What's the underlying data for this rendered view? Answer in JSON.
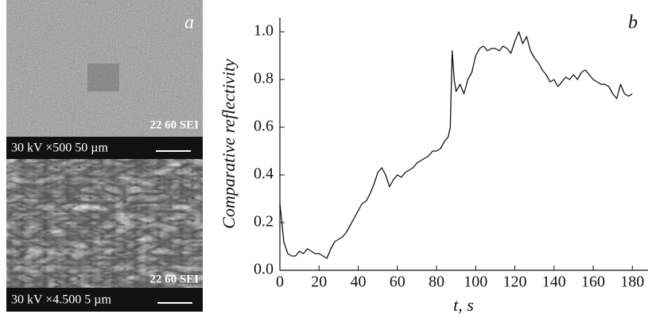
{
  "chart_data": {
    "type": "line",
    "panel": "b",
    "ylabel": "Comparative reflectivity",
    "xlabel": "t, s",
    "x": [
      0,
      1,
      2,
      4,
      6,
      8,
      10,
      12,
      14,
      16,
      18,
      20,
      22,
      24,
      26,
      28,
      30,
      32,
      34,
      36,
      38,
      40,
      42,
      44,
      46,
      48,
      50,
      52,
      54,
      56,
      58,
      60,
      62,
      64,
      66,
      68,
      70,
      72,
      74,
      76,
      78,
      80,
      82,
      84,
      86,
      87,
      88,
      89,
      90,
      92,
      94,
      96,
      98,
      100,
      102,
      104,
      106,
      108,
      110,
      112,
      114,
      116,
      118,
      120,
      122,
      124,
      126,
      128,
      130,
      132,
      134,
      136,
      138,
      140,
      142,
      144,
      146,
      148,
      150,
      152,
      154,
      156,
      158,
      160,
      162,
      164,
      166,
      168,
      170,
      172,
      174,
      176,
      178,
      180
    ],
    "series": [
      {
        "color": "#111111",
        "values": [
          0.28,
          0.2,
          0.12,
          0.07,
          0.06,
          0.06,
          0.08,
          0.07,
          0.09,
          0.08,
          0.07,
          0.07,
          0.06,
          0.05,
          0.09,
          0.12,
          0.13,
          0.14,
          0.16,
          0.19,
          0.22,
          0.25,
          0.28,
          0.29,
          0.32,
          0.36,
          0.41,
          0.43,
          0.4,
          0.35,
          0.38,
          0.4,
          0.39,
          0.41,
          0.42,
          0.43,
          0.45,
          0.46,
          0.47,
          0.48,
          0.5,
          0.5,
          0.51,
          0.54,
          0.56,
          0.6,
          0.92,
          0.8,
          0.75,
          0.78,
          0.74,
          0.8,
          0.83,
          0.9,
          0.93,
          0.94,
          0.92,
          0.93,
          0.93,
          0.92,
          0.94,
          0.93,
          0.91,
          0.96,
          1.0,
          0.95,
          0.98,
          0.92,
          0.89,
          0.87,
          0.84,
          0.82,
          0.79,
          0.8,
          0.77,
          0.79,
          0.81,
          0.8,
          0.82,
          0.8,
          0.83,
          0.84,
          0.82,
          0.8,
          0.79,
          0.78,
          0.78,
          0.77,
          0.74,
          0.72,
          0.78,
          0.74,
          0.73,
          0.74
        ]
      }
    ],
    "xlim": [
      0,
      188
    ],
    "ylim": [
      0,
      1.06
    ],
    "xticks": [
      0,
      20,
      40,
      60,
      80,
      100,
      120,
      140,
      160,
      180
    ],
    "yticks": [
      {
        "value": 0,
        "label": "0.0"
      },
      0.2,
      0.4,
      0.6,
      0.8,
      {
        "value": 1,
        "label": "1.0"
      }
    ]
  },
  "images": [
    {
      "label": "a",
      "code": "22 60 SEI",
      "caption": "30 kV ×500  50 µm"
    },
    {
      "code": "22 60 SEI",
      "caption": "30 kV ×4.500  5 µm"
    }
  ]
}
